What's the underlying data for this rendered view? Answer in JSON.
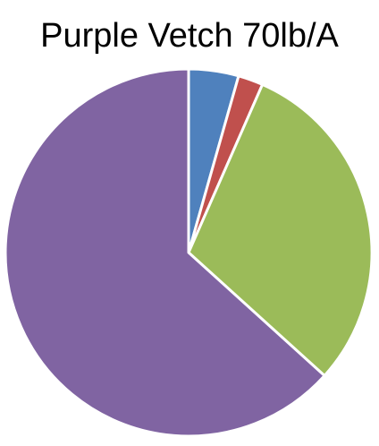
{
  "chart_data": {
    "type": "pie",
    "title": "Purple Vetch 70lb/A",
    "values": [
      4.4,
      2.2,
      30.1,
      63.3
    ],
    "colors": [
      "#4f81bd",
      "#c0504d",
      "#9bbb59",
      "#8064a2"
    ],
    "start_angle_deg": 0,
    "direction": "clockwise",
    "slice_separator_color": "#ffffff",
    "legend": "none",
    "data_labels": "none"
  }
}
